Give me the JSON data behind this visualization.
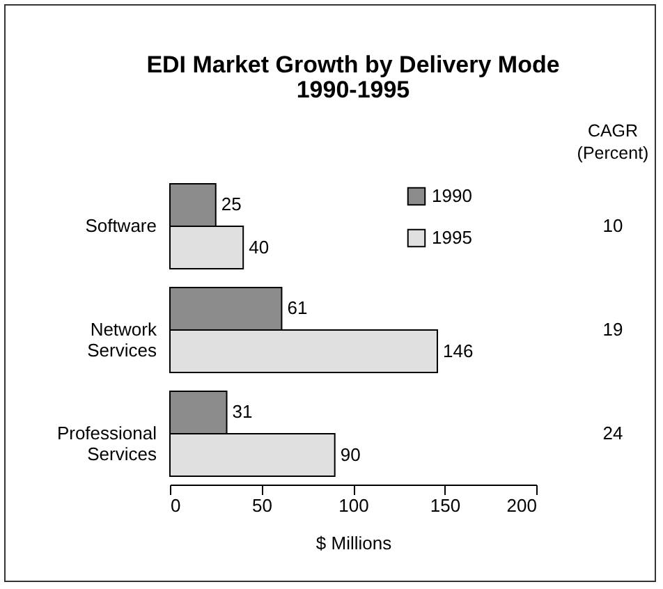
{
  "chart_data": {
    "type": "bar",
    "orientation": "horizontal",
    "title": "EDI Market Growth by Delivery Mode",
    "subtitle": "1990-1995",
    "xlabel": "$ Millions",
    "categories": [
      "Software",
      "Network Services",
      "Professional Services"
    ],
    "series": [
      {
        "name": "1990",
        "color": "#8c8c8c",
        "values": [
          25,
          61,
          31
        ]
      },
      {
        "name": "1995",
        "color": "#e0e0e0",
        "values": [
          40,
          146,
          90
        ]
      }
    ],
    "xlim": [
      0,
      200
    ],
    "xticks": [
      0,
      50,
      100,
      150,
      200
    ],
    "grid": false,
    "legend": "top right",
    "data_labels": true,
    "annotations": [
      "CAGR (Percent)",
      "10",
      "19",
      "24"
    ]
  }
}
